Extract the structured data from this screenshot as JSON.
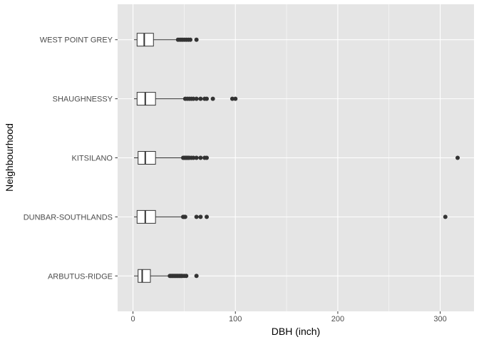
{
  "chart_data": {
    "type": "boxplot",
    "orientation": "horizontal",
    "title": "",
    "xlabel": "DBH (inch)",
    "ylabel": "Neighbourhood",
    "xlim": [
      -15,
      333
    ],
    "x_ticks": [
      0,
      100,
      200,
      300
    ],
    "x_tick_labels": [
      "0",
      "100",
      "200",
      "300"
    ],
    "grid": true,
    "colors": {
      "panel": "#e5e5e5",
      "grid": "#ffffff",
      "box_fill": "#ffffff",
      "box_line": "#333333",
      "outlier": "#333333"
    },
    "categories": [
      "ARBUTUS-RIDGE",
      "DUNBAR-SOUTHLANDS",
      "KITSILANO",
      "SHAUGHNESSY",
      "WEST POINT GREY"
    ],
    "boxes": [
      {
        "category": "ARBUTUS-RIDGE",
        "lower_whisker": 1,
        "q1": 5,
        "median": 9,
        "q3": 17,
        "upper_whisker": 35,
        "outliers": [
          36,
          37,
          38,
          39,
          40,
          41,
          42,
          43,
          44,
          45,
          46,
          47,
          48,
          50,
          52,
          62
        ]
      },
      {
        "category": "DUNBAR-SOUTHLANDS",
        "lower_whisker": 1,
        "q1": 4,
        "median": 12,
        "q3": 22,
        "upper_whisker": 48,
        "outliers": [
          49,
          50,
          51,
          62,
          66,
          72,
          305
        ]
      },
      {
        "category": "KITSILANO",
        "lower_whisker": 1,
        "q1": 5,
        "median": 12,
        "q3": 22,
        "upper_whisker": 48,
        "outliers": [
          49,
          50,
          51,
          52,
          53,
          54,
          55,
          57,
          59,
          62,
          66,
          70,
          72,
          317
        ]
      },
      {
        "category": "SHAUGHNESSY",
        "lower_whisker": 1,
        "q1": 4,
        "median": 12,
        "q3": 22,
        "upper_whisker": 50,
        "outliers": [
          51,
          53,
          55,
          57,
          59,
          62,
          66,
          70,
          72,
          78,
          97,
          100
        ]
      },
      {
        "category": "WEST POINT GREY",
        "lower_whisker": 1,
        "q1": 4,
        "median": 11,
        "q3": 20,
        "upper_whisker": 43,
        "outliers": [
          44,
          46,
          48,
          50,
          52,
          54,
          56,
          62
        ]
      }
    ]
  }
}
